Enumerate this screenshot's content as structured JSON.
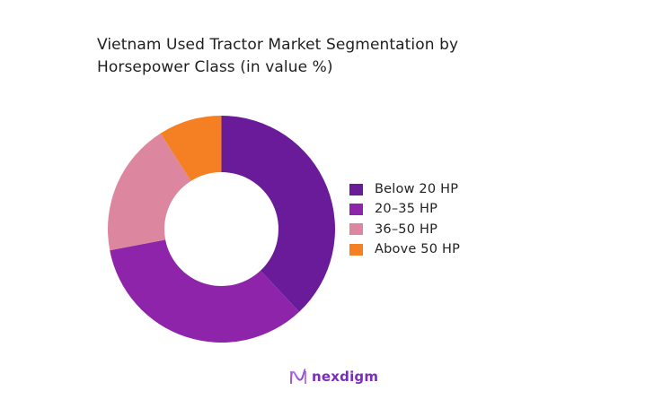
{
  "chart_data": {
    "type": "pie",
    "variant": "donut",
    "title": "Vietnam Used Tractor Market Segmentation by Horsepower Class (in value %)",
    "title_lines": [
      "Vietnam Used Tractor Market Segmentation by",
      "Horsepower Class (in value %)"
    ],
    "categories": [
      "Below 20 HP",
      "20–35 HP",
      "36–50 HP",
      "Above 50 HP"
    ],
    "values": [
      38,
      34,
      19,
      9
    ],
    "unit": "%",
    "colors": [
      "#6A1B9A",
      "#8E24AA",
      "#DC869F",
      "#F58024"
    ],
    "start_angle": "12 o'clock",
    "direction": "clockwise",
    "legend_position": "right",
    "data_labels": false
  },
  "legend": {
    "items": [
      {
        "label": "Below 20 HP",
        "color": "#6A1B9A"
      },
      {
        "label": "20–35 HP",
        "color": "#8E24AA"
      },
      {
        "label": "36–50 HP",
        "color": "#DC869F"
      },
      {
        "label": "Above 50 HP",
        "color": "#F58024"
      }
    ]
  },
  "branding": {
    "logo_text": "nexdigm",
    "logo_color": "#7B2CBF"
  }
}
